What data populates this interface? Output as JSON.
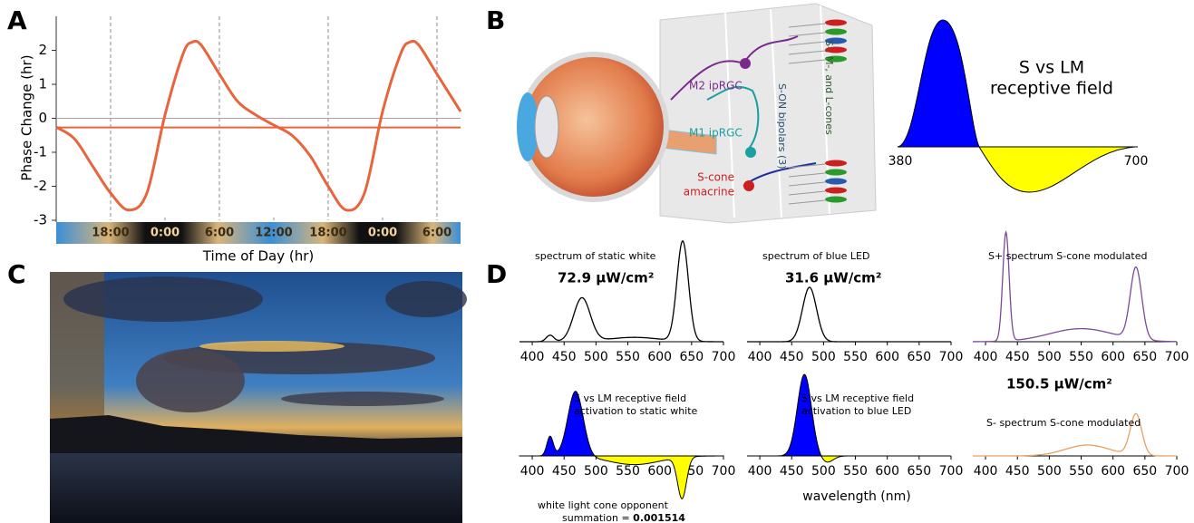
{
  "panel_labels": [
    "A",
    "B",
    "C",
    "D"
  ],
  "chart_data": {
    "type": "line",
    "ylabel": "Phase Change (hr)",
    "xlabel": "Time of Day (hr)",
    "xlim": [
      0,
      44.6
    ],
    "xticks": [
      {
        "value": 6,
        "label": "18:00"
      },
      {
        "value": 12,
        "label": "0:00"
      },
      {
        "value": 18,
        "label": "6:00"
      },
      {
        "value": 24,
        "label": "12:00"
      },
      {
        "value": 30,
        "label": "18:00"
      },
      {
        "value": 36,
        "label": "0:00"
      },
      {
        "value": 42,
        "label": "6:00"
      }
    ],
    "ylim": [
      -3,
      3
    ],
    "yticks": [
      -3,
      -2,
      -1,
      0,
      1,
      2
    ],
    "hlines": [
      {
        "value": 0,
        "color": "#b89aa8"
      },
      {
        "value": -0.27,
        "color": "#e8643c"
      }
    ],
    "series": [
      {
        "color": "#e8643c",
        "x": [
          0,
          2,
          4,
          6,
          8,
          10,
          12,
          14,
          15,
          16,
          18,
          20,
          22,
          24,
          26,
          28,
          30,
          32,
          34,
          36,
          38,
          39,
          40,
          42,
          44.6
        ],
        "values": [
          -0.26,
          -0.6,
          -1.4,
          -2.2,
          -2.7,
          -2.2,
          0.1,
          1.9,
          2.24,
          2.15,
          1.3,
          0.5,
          0.1,
          -0.2,
          -0.5,
          -1.1,
          -2.0,
          -2.7,
          -2.2,
          0.2,
          1.9,
          2.24,
          2.15,
          1.3,
          0.2
        ]
      }
    ]
  },
  "diagram": {
    "m2": "M2 ipRGC",
    "m1": "M1 ipRGC",
    "scone_1": "S-cone",
    "scone_2": "amacrine",
    "bipolars": "S-ON bipolars (3)",
    "cones": "S-, M-, and L-cones"
  },
  "receptive_field": {
    "title_lines": [
      "S vs LM",
      "receptive field"
    ],
    "range_labels": [
      "380",
      "700"
    ]
  },
  "spectra": {
    "xlim": [
      380,
      700
    ],
    "xticks": [
      400,
      450,
      500,
      550,
      600,
      650,
      700
    ],
    "xlabel": "wavelength (nm)",
    "plots": [
      {
        "lines": [
          "spectrum of static white"
        ],
        "irradiance": "72.9 μW/cm²",
        "color": "#000000",
        "signed": false,
        "peaks": [
          [
            428,
            0.06,
            6
          ],
          [
            478,
            0.4,
            13
          ],
          [
            636,
            0.92,
            9
          ],
          [
            560,
            0.04,
            40
          ]
        ]
      },
      {
        "lines": [
          "spectrum of blue LED"
        ],
        "irradiance": "31.6 μW/cm²",
        "color": "#000000",
        "signed": false,
        "peaks": [
          [
            478,
            0.5,
            11
          ]
        ]
      },
      {
        "lines": [
          "S+ spectrum S-cone modulated"
        ],
        "irradiance": "150.5 μW/cm²",
        "color": "#7a4a9a",
        "signed": false,
        "peaks": [
          [
            432,
            1.0,
            5
          ],
          [
            550,
            0.12,
            50
          ],
          [
            636,
            0.66,
            9
          ]
        ]
      },
      {
        "lines": [
          "S vs LM receptive field",
          "activation to static white"
        ],
        "color": "#000000",
        "signed": true,
        "peaks": [
          [
            468,
            0.6,
            12
          ],
          [
            428,
            0.18,
            5
          ],
          [
            635,
            -0.38,
            7
          ],
          [
            560,
            -0.08,
            40
          ]
        ]
      },
      {
        "lines": [
          "S vs LM receptive field",
          "activation to blue LED"
        ],
        "color": "#000000",
        "signed": true,
        "peaks": [
          [
            470,
            0.75,
            11
          ],
          [
            505,
            -0.06,
            10
          ]
        ]
      },
      {
        "lines": [
          "S- spectrum S-cone modulated"
        ],
        "color": "#e8a060",
        "signed": false,
        "peaks": [
          [
            636,
            0.38,
            9
          ],
          [
            560,
            0.1,
            35
          ]
        ]
      }
    ],
    "summation": {
      "text": "white light cone opponent",
      "label": "summation =",
      "value": "0.001514"
    }
  }
}
